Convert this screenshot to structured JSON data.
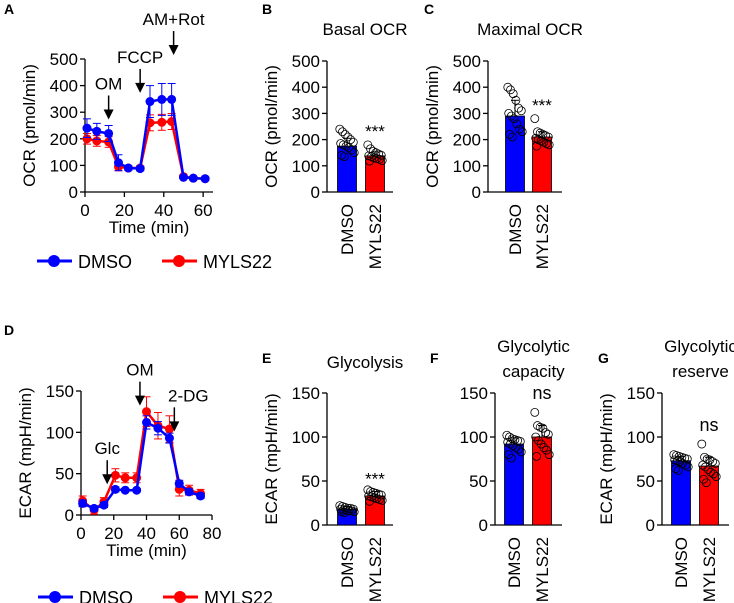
{
  "colors": {
    "DMSO": "#0000ff",
    "MYLS22": "#ff0000"
  },
  "chart_data": [
    {
      "panel": "A",
      "type": "line",
      "xlabel": "Time (min)",
      "ylabel": "OCR (pmol/min)",
      "xlim": [
        0,
        65
      ],
      "ylim": [
        0,
        500
      ],
      "xticks": [
        0,
        20,
        40,
        60
      ],
      "yticks": [
        0,
        100,
        200,
        300,
        400,
        500
      ],
      "annotations": [
        {
          "label": "OM",
          "x": 12
        },
        {
          "label": "FCCP",
          "x": 28
        },
        {
          "label": "AM+Rot",
          "x": 45
        }
      ],
      "legend": "bottom",
      "x": [
        1,
        6,
        12,
        17,
        22,
        28,
        33,
        39,
        44,
        50,
        55,
        61
      ],
      "series": [
        {
          "name": "DMSO",
          "values": [
            240,
            228,
            220,
            110,
            90,
            88,
            340,
            348,
            348,
            55,
            52,
            50
          ],
          "err": [
            35,
            30,
            30,
            30,
            8,
            8,
            60,
            60,
            60,
            5,
            5,
            5
          ]
        },
        {
          "name": "MYLS22",
          "values": [
            200,
            192,
            188,
            95,
            90,
            90,
            260,
            262,
            265,
            58,
            52,
            50
          ],
          "err": [
            20,
            20,
            20,
            15,
            8,
            8,
            30,
            30,
            30,
            5,
            5,
            5
          ]
        }
      ]
    },
    {
      "panel": "B",
      "type": "bar",
      "title": "Basal OCR",
      "ylabel": "OCR (pmol/min)",
      "ylim": [
        0,
        500
      ],
      "yticks": [
        0,
        100,
        200,
        300,
        400,
        500
      ],
      "significance": "***",
      "categories": [
        "DMSO",
        "MYLS22"
      ],
      "values": [
        175,
        138
      ],
      "err": [
        30,
        15
      ],
      "points": [
        [
          240,
          230,
          220,
          210,
          200,
          190,
          185,
          180,
          175,
          170,
          160,
          150,
          140,
          135
        ],
        [
          180,
          165,
          155,
          150,
          145,
          140,
          138,
          135,
          130,
          128,
          125,
          120,
          118
        ]
      ]
    },
    {
      "panel": "C",
      "type": "bar",
      "title": "Maximal OCR",
      "ylabel": "OCR (pmol/min)",
      "ylim": [
        0,
        500
      ],
      "yticks": [
        0,
        100,
        200,
        300,
        400,
        500
      ],
      "significance": "***",
      "categories": [
        "DMSO",
        "MYLS22"
      ],
      "values": [
        290,
        210
      ],
      "err": [
        60,
        20
      ],
      "points": [
        [
          400,
          390,
          375,
          350,
          320,
          310,
          300,
          290,
          280,
          260,
          240,
          230,
          220,
          210
        ],
        [
          280,
          230,
          225,
          220,
          215,
          210,
          205,
          200,
          195,
          190,
          185,
          180,
          175
        ]
      ]
    },
    {
      "panel": "D",
      "type": "line",
      "xlabel": "Time (min)",
      "ylabel": "ECAR (mpH/min)",
      "xlim": [
        0,
        80
      ],
      "ylim": [
        0,
        150
      ],
      "xticks": [
        0,
        20,
        40,
        60,
        80
      ],
      "yticks": [
        0,
        50,
        100,
        150
      ],
      "annotations": [
        {
          "label": "Glc",
          "x": 16
        },
        {
          "label": "OM",
          "x": 36
        },
        {
          "label": "2-DG",
          "x": 57
        }
      ],
      "legend": "bottom",
      "x": [
        1,
        8,
        14,
        21,
        27,
        34,
        40,
        47,
        54,
        60,
        66,
        73
      ],
      "series": [
        {
          "name": "DMSO",
          "values": [
            14,
            8,
            12,
            31,
            30,
            30,
            112,
            105,
            93,
            38,
            28,
            23
          ],
          "err": [
            4,
            3,
            3,
            3,
            2,
            2,
            8,
            8,
            6,
            4,
            3,
            3
          ]
        },
        {
          "name": "MYLS22",
          "values": [
            17,
            6,
            16,
            48,
            45,
            45,
            125,
            108,
            104,
            31,
            30,
            26
          ],
          "err": [
            6,
            5,
            5,
            8,
            6,
            6,
            18,
            16,
            16,
            8,
            6,
            5
          ]
        }
      ]
    },
    {
      "panel": "E",
      "type": "bar",
      "title": "Glycolysis",
      "ylabel": "ECAR (mpH/min)",
      "ylim": [
        0,
        150
      ],
      "yticks": [
        0,
        50,
        100,
        150
      ],
      "significance": "***",
      "categories": [
        "DMSO",
        "MYLS22"
      ],
      "values": [
        18,
        33
      ],
      "err": [
        3,
        5
      ],
      "points": [
        [
          22,
          21,
          20,
          19,
          19,
          18,
          18,
          17,
          17,
          16,
          16,
          15,
          15,
          14
        ],
        [
          40,
          38,
          37,
          36,
          35,
          34,
          33,
          32,
          31,
          30,
          29,
          28,
          27
        ]
      ]
    },
    {
      "panel": "F",
      "type": "bar",
      "title": "Glycolytic capacity",
      "ylabel": "",
      "ylim": [
        0,
        150
      ],
      "yticks": [
        0,
        50,
        100,
        150
      ],
      "significance": "ns",
      "categories": [
        "DMSO",
        "MYLS22"
      ],
      "values": [
        92,
        100
      ],
      "err": [
        7,
        13
      ],
      "points": [
        [
          102,
          100,
          98,
          97,
          96,
          95,
          94,
          92,
          90,
          88,
          86,
          83,
          80,
          76
        ],
        [
          128,
          113,
          111,
          110,
          105,
          103,
          100,
          96,
          92,
          88,
          85,
          80,
          78
        ]
      ]
    },
    {
      "panel": "G",
      "type": "bar",
      "title": "Glycolytic reserve",
      "ylabel": "ECAR (mpH/min)",
      "ylim": [
        0,
        150
      ],
      "yticks": [
        0,
        50,
        100,
        150
      ],
      "significance": "ns",
      "categories": [
        "DMSO",
        "MYLS22"
      ],
      "values": [
        73,
        67
      ],
      "err": [
        5,
        10
      ],
      "points": [
        [
          80,
          79,
          78,
          77,
          76,
          75,
          74,
          73,
          72,
          70,
          68,
          66,
          64,
          62
        ],
        [
          92,
          77,
          75,
          74,
          72,
          70,
          68,
          66,
          63,
          60,
          58,
          55,
          52,
          48
        ]
      ]
    }
  ],
  "panel_labels": [
    "A",
    "B",
    "C",
    "D",
    "E",
    "F",
    "G"
  ]
}
